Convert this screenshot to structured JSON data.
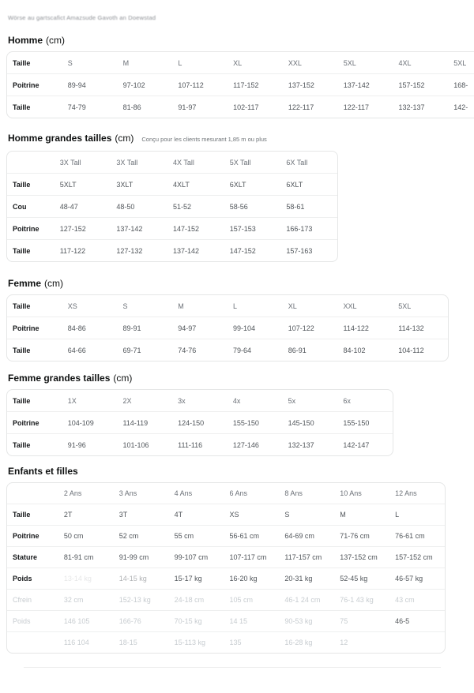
{
  "page": {
    "watermark": "Wörse au gartscafict Amazsude Gavoth an Doewstad",
    "colors": {
      "background": "#ffffff",
      "title_text": "#0f1111",
      "header_text": "#6b7077",
      "cell_text": "#50555a",
      "table_border": "#e5e6e6",
      "faded_text": "#c7ccd0"
    }
  },
  "sections": [
    {
      "id": "homme",
      "title": "Homme",
      "unit": "(cm)",
      "note": "",
      "table": {
        "header": {
          "label": "Taille",
          "cells": [
            "S",
            "M",
            "L",
            "XL",
            "XXL",
            "5XL",
            "4XL",
            "5XL"
          ]
        },
        "rows": [
          {
            "label": "Poitrine",
            "cells": [
              "89-94",
              "97-102",
              "107-112",
              "117-152",
              "137-152",
              "137-142",
              "157-152",
              "168-"
            ]
          },
          {
            "label": "Taille",
            "cells": [
              "74-79",
              "81-86",
              "91-97",
              "102-117",
              "122-117",
              "122-117",
              "132-137",
              "142-"
            ]
          }
        ]
      }
    },
    {
      "id": "homme-grandes-tailles",
      "title": "Homme grandes tailles",
      "unit": "(cm)",
      "note": "Conçu pour les clients mesurant 1,85 m ou plus",
      "table": {
        "header": {
          "label": "",
          "cells": [
            "3X Tall",
            "3X Tall",
            "4X Tall",
            "5X Tall",
            "6X Tall"
          ]
        },
        "rows": [
          {
            "label": "Taille",
            "cells": [
              "5XLT",
              "3XLT",
              "4XLT",
              "6XLT",
              "6XLT"
            ]
          },
          {
            "label": "Cou",
            "cells": [
              "48-47",
              "48-50",
              "51-52",
              "58-56",
              "58-61"
            ]
          },
          {
            "label": "Poitrine",
            "cells": [
              "127-152",
              "137-142",
              "147-152",
              "157-153",
              "166-173"
            ]
          },
          {
            "label": "Taille",
            "cells": [
              "117-122",
              "127-132",
              "137-142",
              "147-152",
              "157-163"
            ]
          }
        ]
      }
    },
    {
      "id": "femme",
      "title": "Femme",
      "unit": "(cm)",
      "note": "",
      "table": {
        "header": {
          "label": "Taille",
          "cells": [
            "XS",
            "S",
            "M",
            "L",
            "XL",
            "XXL",
            "5XL"
          ]
        },
        "rows": [
          {
            "label": "Poitrine",
            "cells": [
              "84-86",
              "89-91",
              "94-97",
              "99-104",
              "107-122",
              "114-122",
              "114-132"
            ]
          },
          {
            "label": "Taille",
            "cells": [
              "64-66",
              "69-71",
              "74-76",
              "79-64",
              "86-91",
              "84-102",
              "104-112"
            ]
          }
        ]
      }
    },
    {
      "id": "femme-grandes-tailles",
      "title": "Femme grandes tailles",
      "unit": "(cm)",
      "note": "",
      "table": {
        "header": {
          "label": "Taille",
          "cells": [
            "1X",
            "2X",
            "3x",
            "4x",
            "5x",
            "6x"
          ]
        },
        "rows": [
          {
            "label": "Poitrine",
            "cells": [
              "104-109",
              "114-119",
              "124-150",
              "155-150",
              "145-150",
              "155-150"
            ]
          },
          {
            "label": "Taille",
            "cells": [
              "91-96",
              "101-106",
              "111-116",
              "127-146",
              "132-137",
              "142-147"
            ]
          }
        ]
      }
    },
    {
      "id": "enfants-et-filles",
      "title": "Enfants et filles",
      "unit": "",
      "note": "",
      "table": {
        "header": {
          "label": "",
          "cells": [
            "2 Ans",
            "3 Ans",
            "4 Ans",
            "6 Ans",
            "8 Ans",
            "10 Ans",
            "12 Ans"
          ]
        },
        "rows": [
          {
            "label": "Taille",
            "cells": [
              "2T",
              "3T",
              "4T",
              "XS",
              "S",
              "M",
              "L"
            ]
          },
          {
            "label": "Poitrine",
            "cells": [
              "50 cm",
              "52 cm",
              "55 cm",
              "56-61 cm",
              "64-69 cm",
              "71-76 cm",
              "76-61 cm"
            ]
          },
          {
            "label": "Stature",
            "cells": [
              "81-91 cm",
              "91-99 cm",
              "99-107 cm",
              "107-117 cm",
              "117-157 cm",
              "137-152 cm",
              "157-152 cm"
            ]
          },
          {
            "label": "Poids",
            "cells": [
              "13-14 kg",
              "14-15 kg",
              "15-17 kg",
              "16-20 kg",
              "20-31 kg",
              "52-45 kg",
              "46-57 kg"
            ],
            "cell_fade": {
              "0": 0.14,
              "1": 0.45
            }
          },
          {
            "label": "Cfrein",
            "faded": true,
            "cells": [
              "32 cm",
              "152-13 kg",
              "24-18 cm",
              "105 cm",
              "46-1 24 cm",
              "76-1 43 kg",
              "43 cm"
            ]
          },
          {
            "label": "Poids",
            "faded": true,
            "cells": [
              "146  105",
              "166-76",
              "70-15 kg",
              "14  15",
              "90-53 kg",
              "75",
              "46-5"
            ],
            "dark_cells": [
              6
            ]
          },
          {
            "label": "",
            "faded": true,
            "cells": [
              "116  104",
              "18-15",
              "15-113 kg",
              "135",
              "16-28 kg",
              "12",
              ""
            ]
          }
        ]
      }
    }
  ]
}
